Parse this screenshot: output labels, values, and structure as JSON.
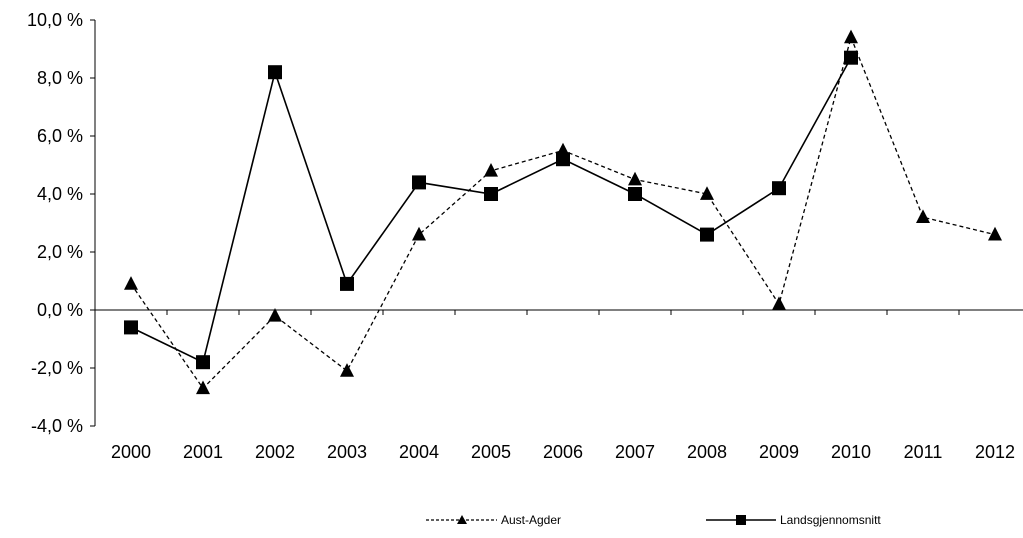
{
  "chart_data": {
    "type": "line",
    "title": "",
    "xlabel": "",
    "ylabel": "",
    "x": [
      "2000",
      "2001",
      "2002",
      "2003",
      "2004",
      "2005",
      "2006",
      "2007",
      "2008",
      "2009",
      "2010",
      "2011",
      "2012"
    ],
    "ylim": [
      -4.0,
      10.0
    ],
    "yticks": [
      -4.0,
      -2.0,
      0.0,
      2.0,
      4.0,
      6.0,
      8.0,
      10.0
    ],
    "ytick_labels": [
      "-4,0 %",
      "-2,0 %",
      "0,0 %",
      "2,0 %",
      "4,0 %",
      "6,0 %",
      "8,0 %",
      "10,0 %"
    ],
    "grid": false,
    "legend_position": "bottom",
    "series": [
      {
        "name": "Aust-Agder",
        "marker": "triangle",
        "line_style": "dashed",
        "color": "#000000",
        "values": [
          0.9,
          -2.7,
          -0.2,
          -2.1,
          2.6,
          4.8,
          5.5,
          4.5,
          4.0,
          0.2,
          9.4,
          3.2,
          2.6
        ]
      },
      {
        "name": "Landsgjennomsnitt",
        "marker": "square",
        "line_style": "solid",
        "color": "#000000",
        "values": [
          -0.6,
          -1.8,
          8.2,
          0.9,
          4.4,
          4.0,
          5.2,
          4.0,
          2.6,
          4.2,
          8.7,
          null,
          null
        ]
      }
    ]
  }
}
